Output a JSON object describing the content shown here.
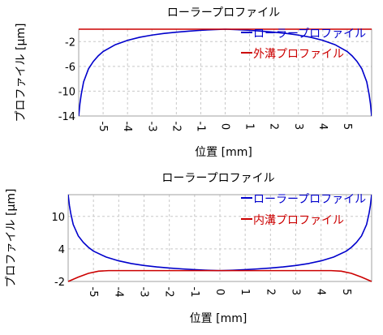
{
  "chart_data": [
    {
      "type": "line",
      "title": "ローラープロファイル",
      "xlabel": "位置 [mm]",
      "ylabel": "プロファイル [μm]",
      "xlim": [
        -6,
        6
      ],
      "ylim": [
        -14,
        0
      ],
      "xticks": [
        -5,
        -4,
        -3,
        -2,
        -1,
        0,
        1,
        2,
        3,
        4,
        5
      ],
      "xticklabels": [
        "-5",
        "-4",
        "-3",
        "-2",
        "-1",
        "0",
        "1",
        "2",
        "3",
        "4",
        "5"
      ],
      "yticks": [
        -14,
        -10,
        -6,
        -2
      ],
      "yticklabels": [
        "-14",
        "-10",
        "-6",
        "-2"
      ],
      "grid": true,
      "legend_position": "top-right",
      "series": [
        {
          "name": "ローラープロファイル",
          "color": "#0000cc",
          "x": [
            -6.0,
            -5.95,
            -5.9,
            -5.8,
            -5.6,
            -5.4,
            -5.2,
            -5.0,
            -4.5,
            -4.0,
            -3.5,
            -3.0,
            -2.5,
            -2.0,
            -1.5,
            -1.0,
            -0.5,
            0.0,
            0.5,
            1.0,
            1.5,
            2.0,
            2.5,
            3.0,
            3.5,
            4.0,
            4.5,
            5.0,
            5.2,
            5.4,
            5.6,
            5.8,
            5.9,
            5.95,
            6.0
          ],
          "y": [
            -14.0,
            -12.0,
            -10.6,
            -8.5,
            -6.4,
            -5.2,
            -4.3,
            -3.6,
            -2.5,
            -1.8,
            -1.3,
            -0.95,
            -0.68,
            -0.48,
            -0.32,
            -0.18,
            -0.07,
            0.0,
            -0.07,
            -0.18,
            -0.32,
            -0.48,
            -0.68,
            -0.95,
            -1.3,
            -1.8,
            -2.5,
            -3.6,
            -4.3,
            -5.2,
            -6.4,
            -8.5,
            -10.6,
            -12.0,
            -14.0
          ]
        },
        {
          "name": "外溝プロファイル",
          "color": "#cc0000",
          "x": [
            -6,
            6
          ],
          "y": [
            0.0,
            0.0
          ]
        }
      ]
    },
    {
      "type": "line",
      "title": "ローラープロファイル",
      "xlabel": "位置 [mm]",
      "ylabel": "プロファイル [μm]",
      "xlim": [
        -6,
        6
      ],
      "ylim": [
        -2,
        14
      ],
      "xticks": [
        -5,
        -4,
        -3,
        -2,
        -1,
        0,
        1,
        2,
        3,
        4,
        5
      ],
      "xticklabels": [
        "-5",
        "-4",
        "-3",
        "-2",
        "-1",
        "0",
        "1",
        "2",
        "3",
        "4",
        "5"
      ],
      "yticks": [
        -2,
        4,
        10
      ],
      "yticklabels": [
        "-2",
        "4",
        "10"
      ],
      "grid": true,
      "legend_position": "top-right",
      "series": [
        {
          "name": "ローラープロファイル",
          "color": "#0000cc",
          "x": [
            -6.0,
            -5.95,
            -5.9,
            -5.8,
            -5.6,
            -5.4,
            -5.2,
            -5.0,
            -4.5,
            -4.0,
            -3.5,
            -3.0,
            -2.5,
            -2.0,
            -1.5,
            -1.0,
            -0.5,
            0.0,
            0.5,
            1.0,
            1.5,
            2.0,
            2.5,
            3.0,
            3.5,
            4.0,
            4.5,
            5.0,
            5.2,
            5.4,
            5.6,
            5.8,
            5.9,
            5.95,
            6.0
          ],
          "y": [
            14.0,
            12.0,
            10.6,
            8.5,
            6.4,
            5.2,
            4.3,
            3.6,
            2.5,
            1.8,
            1.3,
            0.95,
            0.68,
            0.48,
            0.32,
            0.18,
            0.07,
            0.0,
            0.07,
            0.18,
            0.32,
            0.48,
            0.68,
            0.95,
            1.3,
            1.8,
            2.5,
            3.6,
            4.3,
            5.2,
            6.4,
            8.5,
            10.6,
            12.0,
            14.0
          ]
        },
        {
          "name": "内溝プロファイル",
          "color": "#cc0000",
          "x": [
            -6.0,
            -5.6,
            -5.2,
            -4.8,
            -4.4,
            -4.0,
            -3.0,
            -2.0,
            -1.0,
            0.0,
            1.0,
            2.0,
            3.0,
            4.0,
            4.4,
            4.8,
            5.2,
            5.6,
            6.0
          ],
          "y": [
            -2.0,
            -1.2,
            -0.5,
            -0.1,
            0.0,
            0.0,
            0.0,
            0.0,
            0.0,
            0.0,
            0.0,
            0.0,
            0.0,
            0.0,
            0.0,
            -0.1,
            -0.5,
            -1.2,
            -2.0
          ]
        }
      ]
    }
  ]
}
